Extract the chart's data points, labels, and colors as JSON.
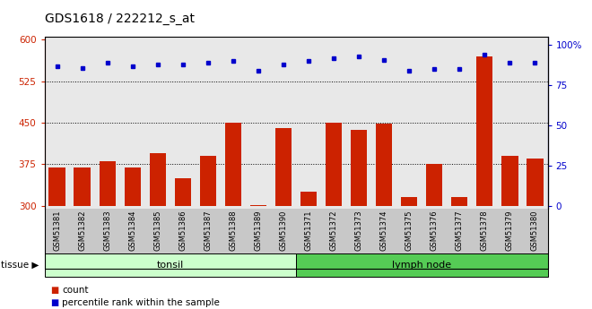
{
  "title": "GDS1618 / 222212_s_at",
  "categories": [
    "GSM51381",
    "GSM51382",
    "GSM51383",
    "GSM51384",
    "GSM51385",
    "GSM51386",
    "GSM51387",
    "GSM51388",
    "GSM51389",
    "GSM51390",
    "GSM51371",
    "GSM51372",
    "GSM51373",
    "GSM51374",
    "GSM51375",
    "GSM51376",
    "GSM51377",
    "GSM51378",
    "GSM51379",
    "GSM51380"
  ],
  "counts": [
    370,
    370,
    380,
    370,
    395,
    350,
    390,
    450,
    302,
    440,
    325,
    450,
    438,
    448,
    316,
    375,
    316,
    570,
    390,
    385
  ],
  "percentiles": [
    87,
    86,
    89,
    87,
    88,
    88,
    89,
    90,
    84,
    88,
    90,
    92,
    93,
    91,
    84,
    85,
    85,
    94,
    89,
    89
  ],
  "tissue_groups": [
    {
      "label": "tonsil",
      "start": 0,
      "end": 10,
      "color": "#ccffcc"
    },
    {
      "label": "lymph node",
      "start": 10,
      "end": 20,
      "color": "#55cc55"
    }
  ],
  "bar_color": "#cc2200",
  "dot_color": "#0000cc",
  "ylim_left": [
    295,
    605
  ],
  "ylim_right": [
    -1.4,
    105
  ],
  "yticks_left": [
    300,
    375,
    450,
    525,
    600
  ],
  "yticks_right": [
    0,
    25,
    50,
    75,
    100
  ],
  "grid_values": [
    375,
    450,
    525
  ],
  "plot_bg_color": "#e8e8e8",
  "xtick_bg_color": "#c8c8c8",
  "title_fontsize": 10,
  "axis_color_left": "#cc2200",
  "axis_color_right": "#0000cc",
  "bar_bottom": 300
}
